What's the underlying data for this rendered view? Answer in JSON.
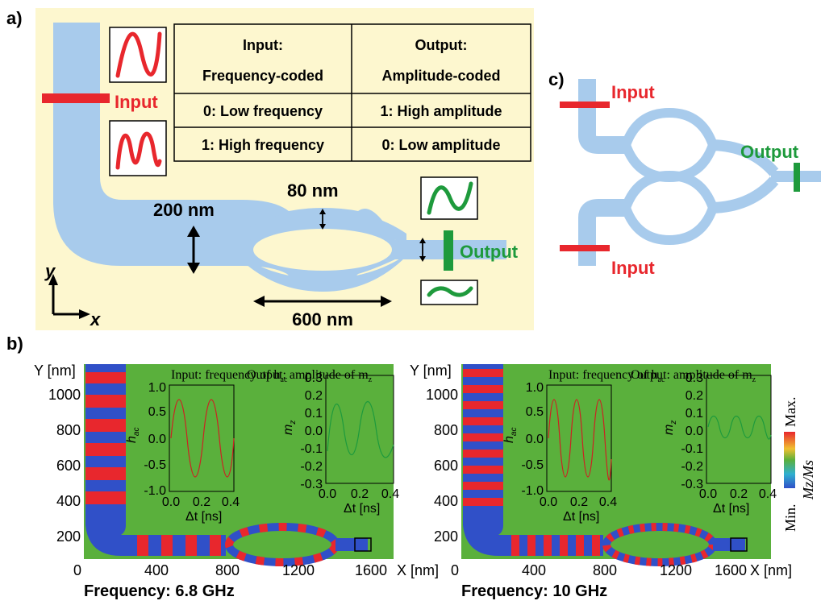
{
  "panel_a": {
    "label": "a)",
    "table": {
      "input_header_1": "Input:",
      "input_header_2": "Frequency-coded",
      "output_header_1": "Output:",
      "output_header_2": "Amplitude-coded",
      "row1_input": "0: Low frequency",
      "row1_output": "1: High amplitude",
      "row2_input": "1: High frequency",
      "row2_output": "0: Low amplitude"
    },
    "input_label": "Input",
    "output_label": "Output",
    "dim_width": "200 nm",
    "dim_arm": "80 nm",
    "dim_length": "600 nm",
    "axis_y": "y",
    "axis_x": "x",
    "colors": {
      "background": "#fdf7cf",
      "waveguide": "#a8cbec",
      "input": "#e8272d",
      "output": "#1e9a3c"
    }
  },
  "panel_c": {
    "label": "c)",
    "input_top": "Input",
    "input_bottom": "Input",
    "output": "Output"
  },
  "panel_b": {
    "label": "b)",
    "y_axis_label": "Y [nm]",
    "x_axis_label": "X [nm]",
    "y_ticks": [
      "1000",
      "800",
      "600",
      "400",
      "200"
    ],
    "x_ticks": [
      "0",
      "400",
      "800",
      "1200",
      "1600"
    ],
    "colorbar": {
      "max": "Max.",
      "min": "Min.",
      "label": "Mz/Ms"
    },
    "left": {
      "caption": "Frequency: 6.8 GHz",
      "inset_input_title": "Input: frequency of h",
      "inset_input_sub": "ac",
      "inset_output_title": "Output: amplitude of m",
      "inset_output_sub": "z",
      "inset_input_ylabel": "h",
      "inset_input_ylabel_sub": "ac",
      "inset_output_ylabel": "m",
      "inset_output_ylabel_sub": "z",
      "inset_xlabel": "Δt [ns]"
    },
    "right": {
      "caption": "Frequency: 10 GHz",
      "inset_input_title": "Input: frequency of h",
      "inset_input_sub": "ac",
      "inset_output_title": "Output: amplitude of m",
      "inset_output_sub": "z",
      "inset_input_ylabel": "h",
      "inset_input_ylabel_sub": "ac",
      "inset_output_ylabel": "m",
      "inset_output_ylabel_sub": "z",
      "inset_xlabel": "Δt [ns]"
    },
    "inset_x_ticks": [
      "0.0",
      "0.2",
      "0.4"
    ],
    "inset_input_y_ticks": [
      "1.0",
      "0.5",
      "0.0",
      "-0.5",
      "-1.0"
    ],
    "inset_output_y_ticks": [
      "0.3",
      "0.2",
      "0.1",
      "0.0",
      "-0.1",
      "-0.2",
      "-0.3"
    ]
  }
}
